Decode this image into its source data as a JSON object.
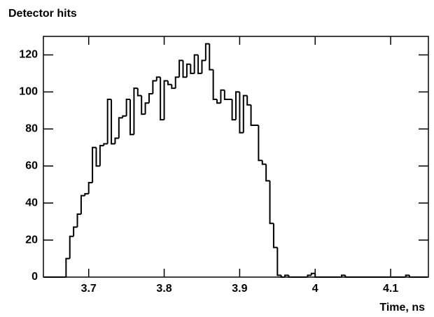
{
  "chart_data": {
    "type": "histogram",
    "title": "Detector hits",
    "xlabel": "Time, ns",
    "bins": [
      3.64,
      3.645,
      3.65,
      3.655,
      3.66,
      3.665,
      3.67,
      3.675,
      3.68,
      3.685,
      3.69,
      3.695,
      3.7,
      3.705,
      3.71,
      3.715,
      3.72,
      3.725,
      3.73,
      3.735,
      3.74,
      3.745,
      3.75,
      3.755,
      3.76,
      3.765,
      3.77,
      3.775,
      3.78,
      3.785,
      3.79,
      3.795,
      3.8,
      3.805,
      3.81,
      3.815,
      3.82,
      3.825,
      3.83,
      3.835,
      3.84,
      3.845,
      3.85,
      3.855,
      3.86,
      3.865,
      3.87,
      3.875,
      3.88,
      3.885,
      3.89,
      3.895,
      3.9,
      3.905,
      3.91,
      3.915,
      3.92,
      3.925,
      3.93,
      3.935,
      3.94,
      3.945,
      3.95,
      3.955,
      3.96,
      3.965,
      3.97,
      3.975,
      3.98,
      3.985,
      3.99,
      3.995,
      4.0,
      4.005,
      4.01,
      4.015,
      4.02,
      4.025,
      4.03,
      4.035,
      4.04,
      4.045,
      4.05,
      4.055,
      4.06,
      4.065,
      4.07,
      4.075,
      4.08,
      4.085,
      4.09,
      4.095,
      4.1,
      4.105,
      4.11,
      4.115,
      4.12,
      4.125,
      4.13,
      4.135,
      4.14,
      4.145,
      4.15
    ],
    "values": [
      0,
      0,
      0,
      0,
      0,
      0,
      10,
      22,
      27,
      34,
      44,
      45,
      51,
      70,
      60,
      71,
      72,
      96,
      72,
      75,
      86,
      87,
      96,
      77,
      102,
      98,
      88,
      94,
      99,
      106,
      108,
      85,
      106,
      104,
      102,
      108,
      117,
      108,
      115,
      110,
      120,
      110,
      117,
      126,
      112,
      96,
      94,
      101,
      96,
      96,
      85,
      100,
      78,
      98,
      93,
      82,
      82,
      63,
      61,
      52,
      29,
      16,
      1,
      0,
      1,
      0,
      0,
      0,
      0,
      0,
      1,
      2,
      0,
      0,
      0,
      0,
      0,
      0,
      0,
      1,
      0,
      0,
      0,
      0,
      0,
      0,
      0,
      0,
      0,
      0,
      0,
      0,
      0,
      0,
      0,
      0,
      1,
      0,
      0,
      0,
      0,
      0
    ],
    "color": "#000000",
    "xlim": [
      3.64,
      4.15
    ],
    "ylim": [
      0,
      130
    ],
    "xticks": [
      3.7,
      3.8,
      3.9,
      4,
      4.1
    ],
    "yticks": [
      0,
      20,
      40,
      60,
      80,
      100,
      120
    ]
  }
}
